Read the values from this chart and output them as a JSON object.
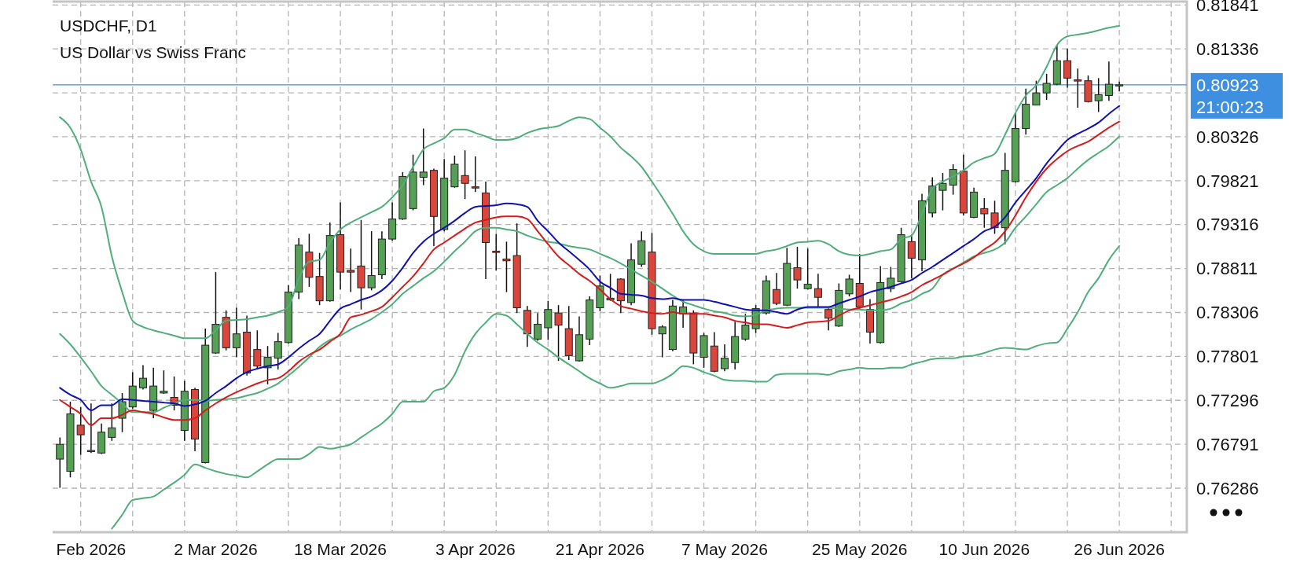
{
  "chart_data": {
    "type": "candlestick",
    "title": "USDCHF, D1",
    "subtitle": "US Dollar vs Swiss Franc",
    "categories": [
      null,
      null,
      null,
      "Feb 2026",
      null,
      null,
      null,
      null,
      null,
      null,
      null,
      null,
      null,
      null,
      null,
      "2 Mar 2026",
      null,
      null,
      null,
      null,
      null,
      null,
      null,
      null,
      null,
      null,
      null,
      "18 Mar 2026",
      null,
      null,
      null,
      null,
      null,
      null,
      null,
      null,
      null,
      null,
      null,
      null,
      "3 Apr 2026",
      null,
      null,
      null,
      null,
      null,
      null,
      null,
      null,
      null,
      null,
      null,
      "21 Apr 2026",
      null,
      null,
      null,
      null,
      null,
      null,
      null,
      null,
      null,
      null,
      null,
      "7 May 2026",
      null,
      null,
      null,
      null,
      null,
      null,
      null,
      null,
      null,
      null,
      null,
      null,
      "25 May 2026",
      null,
      null,
      null,
      null,
      null,
      null,
      null,
      null,
      null,
      null,
      null,
      "10 Jun 2026",
      null,
      null,
      null,
      null,
      null,
      null,
      null,
      null,
      null,
      null,
      null,
      null,
      "26 Jun 2026"
    ],
    "ylim": [
      0.7578,
      0.8188
    ],
    "yticks": [
      0.76286,
      0.76791,
      0.77296,
      0.77801,
      0.78306,
      0.78811,
      0.79316,
      0.79821,
      0.80326,
      {
        "value": 0.80831,
        "label": null
      },
      0.81336,
      0.81841
    ],
    "grid": true,
    "ref_lines": [
      {
        "axis": "y",
        "value": 0.80923,
        "label": "0.80923",
        "color": "#3f8fe0"
      }
    ],
    "annotations": [
      "21:00:23"
    ],
    "series": [
      {
        "colors": [
          "#55a055",
          "#55a055",
          "#d9463b",
          "#55a055",
          "#55a055",
          "#55a055",
          "#55a055",
          "#55a055",
          "#55a055",
          "#55a055",
          "#55a055",
          "#d9463b",
          "#55a055",
          "#d9463b",
          "#55a055",
          "#55a055",
          "#d9463b",
          "#55a055",
          "#d9463b",
          "#d9463b",
          "#55a055",
          "#55a055",
          "#55a055",
          "#55a055",
          "#d9463b",
          "#d9463b",
          "#55a055",
          "#d9463b",
          "#d9463b",
          "#d9463b",
          "#55a055",
          "#55a055",
          "#55a055",
          "#55a055",
          "#55a055",
          "#55a055",
          "#d9463b",
          "#55a055",
          "#55a055",
          "#d9463b",
          "#d9463b",
          "#d9463b",
          "#d9463b",
          "#d9463b",
          "#d9463b",
          "#d9463b",
          "#55a055",
          "#55a055",
          "#d9463b",
          "#d9463b",
          "#55a055",
          "#55a055",
          "#55a055",
          "#55a055",
          "#d9463b",
          "#55a055",
          "#55a055",
          "#d9463b",
          "#55a055",
          "#55a055",
          "#55a055",
          "#d9463b",
          "#55a055",
          "#d9463b",
          "#55a055",
          "#55a055",
          "#55a055",
          "#55a055",
          "#55a055",
          "#d9463b",
          "#55a055",
          "#d9463b",
          "#55a055",
          "#d9463b",
          "#d9463b",
          "#55a055",
          "#55a055",
          "#d9463b",
          "#d9463b",
          "#55a055",
          "#55a055",
          "#55a055",
          "#d9463b",
          "#55a055",
          "#55a055",
          "#55a055",
          "#55a055",
          "#d9463b",
          "#55a055",
          "#d9463b",
          "#d9463b",
          "#55a055",
          "#55a055",
          "#55a055",
          "#55a055",
          "#55a055",
          "#55a055",
          "#d9463b",
          "#d9463b",
          "#d9463b",
          "#55a055",
          "#55a055",
          "#55a055"
        ],
        "ohlc": [
          [
            0.7662,
            0.7687,
            0.7629,
            0.7679
          ],
          [
            0.7648,
            0.7728,
            0.7641,
            0.7714
          ],
          [
            0.7701,
            0.7722,
            0.7667,
            0.769
          ],
          [
            0.7671,
            0.7726,
            0.7669,
            0.7672
          ],
          [
            0.7669,
            0.7703,
            0.7668,
            0.7693
          ],
          [
            0.7687,
            0.7726,
            0.7683,
            0.7698
          ],
          [
            0.7709,
            0.7738,
            0.7693,
            0.7728
          ],
          [
            0.7722,
            0.7762,
            0.772,
            0.7746
          ],
          [
            0.7744,
            0.777,
            0.7742,
            0.7755
          ],
          [
            0.7718,
            0.7767,
            0.7709,
            0.7746
          ],
          [
            0.7738,
            0.7764,
            0.7737,
            0.774
          ],
          [
            0.7733,
            0.7757,
            0.7718,
            0.7724
          ],
          [
            0.7695,
            0.7752,
            0.7683,
            0.774
          ],
          [
            0.7742,
            0.7744,
            0.7671,
            0.7685
          ],
          [
            0.7658,
            0.7812,
            0.7657,
            0.7793
          ],
          [
            0.7784,
            0.7877,
            0.7783,
            0.7817
          ],
          [
            0.7825,
            0.7833,
            0.7787,
            0.779
          ],
          [
            0.779,
            0.7836,
            0.7779,
            0.7806
          ],
          [
            0.7808,
            0.7827,
            0.7758,
            0.7761
          ],
          [
            0.7788,
            0.781,
            0.7766,
            0.7769
          ],
          [
            0.7767,
            0.7792,
            0.7748,
            0.7779
          ],
          [
            0.7778,
            0.7807,
            0.7765,
            0.7797
          ],
          [
            0.7796,
            0.7862,
            0.7795,
            0.7854
          ],
          [
            0.7854,
            0.7916,
            0.7846,
            0.7908
          ],
          [
            0.79,
            0.7921,
            0.786,
            0.7871
          ],
          [
            0.7872,
            0.7899,
            0.7839,
            0.7844
          ],
          [
            0.7844,
            0.7934,
            0.7843,
            0.7919
          ],
          [
            0.792,
            0.7957,
            0.7857,
            0.7877
          ],
          [
            0.7879,
            0.7904,
            0.7854,
            0.7877
          ],
          [
            0.7884,
            0.7937,
            0.7834,
            0.7859
          ],
          [
            0.7859,
            0.7924,
            0.7856,
            0.7873
          ],
          [
            0.7874,
            0.7924,
            0.7869,
            0.7915
          ],
          [
            0.7915,
            0.7957,
            0.7913,
            0.7938
          ],
          [
            0.7938,
            0.7992,
            0.7937,
            0.7987
          ],
          [
            0.795,
            0.8012,
            0.7948,
            0.7992
          ],
          [
            0.7986,
            0.8042,
            0.7977,
            0.7992
          ],
          [
            0.7994,
            0.7996,
            0.7907,
            0.7941
          ],
          [
            0.7926,
            0.8007,
            0.7924,
            0.7985
          ],
          [
            0.7975,
            0.8011,
            0.7974,
            0.8001
          ],
          [
            0.7988,
            0.8017,
            0.7961,
            0.7979
          ],
          [
            0.7975,
            0.801,
            0.7969,
            0.7974
          ],
          [
            0.7968,
            0.7981,
            0.7869,
            0.7911
          ],
          [
            0.7901,
            0.7921,
            0.7879,
            0.79
          ],
          [
            0.7892,
            0.7912,
            0.7854,
            0.789
          ],
          [
            0.7896,
            0.7933,
            0.783,
            0.7836
          ],
          [
            0.7833,
            0.7838,
            0.7791,
            0.7806
          ],
          [
            0.78,
            0.783,
            0.7798,
            0.7817
          ],
          [
            0.7813,
            0.7844,
            0.7799,
            0.7834
          ],
          [
            0.783,
            0.7839,
            0.7775,
            0.7816
          ],
          [
            0.7812,
            0.7838,
            0.7776,
            0.7781
          ],
          [
            0.7775,
            0.7826,
            0.7774,
            0.7805
          ],
          [
            0.78,
            0.7849,
            0.7793,
            0.7845
          ],
          [
            0.7836,
            0.7873,
            0.7832,
            0.7861
          ],
          [
            0.7845,
            0.7875,
            0.7844,
            0.7847
          ],
          [
            0.7869,
            0.787,
            0.783,
            0.7844
          ],
          [
            0.7842,
            0.791,
            0.7839,
            0.7891
          ],
          [
            0.7886,
            0.7924,
            0.7883,
            0.7913
          ],
          [
            0.79,
            0.7922,
            0.7805,
            0.7812
          ],
          [
            0.7806,
            0.7816,
            0.7779,
            0.7814
          ],
          [
            0.7788,
            0.7845,
            0.7786,
            0.7838
          ],
          [
            0.7829,
            0.7845,
            0.7813,
            0.7837
          ],
          [
            0.783,
            0.7833,
            0.7771,
            0.7784
          ],
          [
            0.7779,
            0.7807,
            0.7767,
            0.7804
          ],
          [
            0.7792,
            0.7808,
            0.7762,
            0.7763
          ],
          [
            0.7766,
            0.7794,
            0.7763,
            0.7778
          ],
          [
            0.7773,
            0.782,
            0.7765,
            0.7803
          ],
          [
            0.78,
            0.7829,
            0.7798,
            0.7816
          ],
          [
            0.7812,
            0.7839,
            0.7807,
            0.7835
          ],
          [
            0.783,
            0.7873,
            0.7828,
            0.7867
          ],
          [
            0.7857,
            0.7876,
            0.7839,
            0.7841
          ],
          [
            0.7839,
            0.7905,
            0.7838,
            0.7887
          ],
          [
            0.7882,
            0.7906,
            0.7858,
            0.7868
          ],
          [
            0.7858,
            0.7904,
            0.7857,
            0.7863
          ],
          [
            0.7858,
            0.7875,
            0.7836,
            0.7848
          ],
          [
            0.7834,
            0.7837,
            0.781,
            0.7824
          ],
          [
            0.7815,
            0.7864,
            0.7814,
            0.7856
          ],
          [
            0.7852,
            0.7874,
            0.7849,
            0.7869
          ],
          [
            0.7864,
            0.7898,
            0.7835,
            0.7837
          ],
          [
            0.7834,
            0.7846,
            0.7795,
            0.7808
          ],
          [
            0.7796,
            0.7884,
            0.7795,
            0.7865
          ],
          [
            0.7858,
            0.7883,
            0.7854,
            0.787
          ],
          [
            0.7866,
            0.7928,
            0.7865,
            0.792
          ],
          [
            0.7912,
            0.792,
            0.787,
            0.7893
          ],
          [
            0.7891,
            0.7967,
            0.7878,
            0.7959
          ],
          [
            0.7945,
            0.7986,
            0.794,
            0.7976
          ],
          [
            0.7971,
            0.7991,
            0.7948,
            0.7979
          ],
          [
            0.7977,
            0.8001,
            0.7966,
            0.7995
          ],
          [
            0.7993,
            0.8012,
            0.7942,
            0.7945
          ],
          [
            0.794,
            0.7974,
            0.7939,
            0.7969
          ],
          [
            0.795,
            0.7962,
            0.7928,
            0.7944
          ],
          [
            0.7945,
            0.7959,
            0.7921,
            0.7928
          ],
          [
            0.7928,
            0.8014,
            0.7909,
            0.7994
          ],
          [
            0.7981,
            0.806,
            0.798,
            0.8042
          ],
          [
            0.8042,
            0.8088,
            0.8035,
            0.807
          ],
          [
            0.8069,
            0.8097,
            0.8069,
            0.8083
          ],
          [
            0.8083,
            0.8105,
            0.8075,
            0.8094
          ],
          [
            0.8093,
            0.8138,
            0.8092,
            0.812
          ],
          [
            0.812,
            0.8134,
            0.8089,
            0.81
          ],
          [
            0.8098,
            0.8111,
            0.8066,
            0.8097
          ],
          [
            0.8097,
            0.8103,
            0.8072,
            0.8073
          ],
          [
            0.8074,
            0.81,
            0.8061,
            0.8081
          ],
          [
            0.808,
            0.8119,
            0.8074,
            0.8093
          ],
          [
            0.8091,
            0.8096,
            0.8085,
            0.80923
          ]
        ]
      },
      {
        "type": "line",
        "color": "#4fae7a",
        "values": [
          0.8055,
          0.8043,
          0.8018,
          0.7981,
          0.7952,
          0.7895,
          0.7854,
          0.7821,
          0.7814,
          0.781,
          0.7807,
          0.7804,
          0.7801,
          0.7801,
          0.7801,
          0.781,
          0.7821,
          0.7822,
          0.7823,
          0.7825,
          0.7827,
          0.7831,
          0.7837,
          0.787,
          0.7889,
          0.7891,
          0.7911,
          0.7926,
          0.7934,
          0.794,
          0.7946,
          0.7952,
          0.7963,
          0.7977,
          0.7998,
          0.8018,
          0.8025,
          0.8031,
          0.8041,
          0.8041,
          0.8037,
          0.8033,
          0.8029,
          0.8029,
          0.8031,
          0.8037,
          0.8041,
          0.8043,
          0.8045,
          0.8051,
          0.8055,
          0.8053,
          0.8043,
          0.8033,
          0.802,
          0.801,
          0.7998,
          0.7981,
          0.7963,
          0.7944,
          0.7924,
          0.7909,
          0.7901,
          0.7898,
          0.7898,
          0.7898,
          0.7898,
          0.7898,
          0.7901,
          0.7903,
          0.7907,
          0.7911,
          0.7912,
          0.7913,
          0.7909,
          0.7901,
          0.7897,
          0.7896,
          0.7898,
          0.7901,
          0.7903,
          0.7915,
          0.7919,
          0.7944,
          0.7973,
          0.7981,
          0.7987,
          0.7994,
          0.8003,
          0.8008,
          0.8013,
          0.8035,
          0.806,
          0.808,
          0.8092,
          0.8113,
          0.8138,
          0.8148,
          0.815,
          0.8152,
          0.8155,
          0.8158,
          0.816
        ]
      },
      {
        "type": "line",
        "color": "#4fae7a",
        "values": [
          0.7806,
          0.7794,
          0.7779,
          0.7763,
          0.7746,
          0.7736,
          0.7726,
          0.7716,
          0.7716,
          0.7716,
          0.7721,
          0.7726,
          0.773,
          0.773,
          0.7729,
          0.773,
          0.7731,
          0.7732,
          0.7735,
          0.7738,
          0.7743,
          0.7749,
          0.7758,
          0.7768,
          0.7779,
          0.7791,
          0.7799,
          0.7804,
          0.7811,
          0.7817,
          0.7823,
          0.7831,
          0.784,
          0.7852,
          0.7861,
          0.787,
          0.7878,
          0.7889,
          0.7901,
          0.7912,
          0.7924,
          0.7928,
          0.7928,
          0.7926,
          0.7924,
          0.7919,
          0.7915,
          0.7912,
          0.791,
          0.7907,
          0.7905,
          0.7903,
          0.7898,
          0.7893,
          0.7887,
          0.788,
          0.7873,
          0.7866,
          0.7858,
          0.785,
          0.7843,
          0.7839,
          0.7835,
          0.7832,
          0.783,
          0.7827,
          0.7826,
          0.7828,
          0.7833,
          0.7835,
          0.7836,
          0.7836,
          0.7836,
          0.7836,
          0.7836,
          0.7835,
          0.7834,
          0.7834,
          0.7833,
          0.7833,
          0.7835,
          0.7841,
          0.7845,
          0.7852,
          0.7858,
          0.7874,
          0.7881,
          0.7888,
          0.7895,
          0.7899,
          0.7903,
          0.7911,
          0.7928,
          0.7941,
          0.7955,
          0.7969,
          0.7977,
          0.7985,
          0.7996,
          0.8006,
          0.8014,
          0.8022,
          0.8033
        ]
      },
      {
        "type": "line",
        "color": "#4fae7a",
        "values": [
          null,
          null,
          null,
          null,
          null,
          0.7582,
          0.7598,
          0.7615,
          0.7617,
          0.7619,
          0.7627,
          0.7635,
          0.7644,
          0.7656,
          0.7652,
          0.7648,
          0.7645,
          0.7643,
          0.7641,
          0.7648,
          0.7656,
          0.7662,
          0.7662,
          0.7662,
          0.7668,
          0.7676,
          0.7674,
          0.7676,
          0.7679,
          0.7687,
          0.7695,
          0.7703,
          0.7714,
          0.7728,
          0.7728,
          0.7728,
          0.774,
          0.7744,
          0.7759,
          0.7786,
          0.7806,
          0.7819,
          0.7829,
          0.7827,
          0.7817,
          0.7806,
          0.7796,
          0.7788,
          0.7779,
          0.7771,
          0.7763,
          0.7755,
          0.7749,
          0.7744,
          0.7746,
          0.7749,
          0.7749,
          0.7749,
          0.7753,
          0.776,
          0.7769,
          0.7767,
          0.7762,
          0.7758,
          0.7753,
          0.7752,
          0.7752,
          0.7751,
          0.7751,
          0.7759,
          0.776,
          0.776,
          0.776,
          0.776,
          0.7759,
          0.7763,
          0.7765,
          0.7767,
          0.7766,
          0.7766,
          0.7767,
          0.7767,
          0.7771,
          0.7774,
          0.7777,
          0.7778,
          0.7778,
          0.778,
          0.7781,
          0.7784,
          0.7788,
          0.779,
          0.7789,
          0.7788,
          0.7792,
          0.7795,
          0.7796,
          0.7812,
          0.7831,
          0.7854,
          0.787,
          0.7891,
          0.7907
        ]
      },
      {
        "type": "line",
        "color": "#1010b0",
        "values": [
          0.7744,
          0.7736,
          0.773,
          0.7718,
          0.7724,
          0.7724,
          0.7731,
          0.773,
          0.7729,
          0.7728,
          0.7727,
          0.7726,
          0.7723,
          0.7725,
          0.7729,
          0.7738,
          0.7746,
          0.7755,
          0.7762,
          0.7766,
          0.7769,
          0.7771,
          0.7779,
          0.7789,
          0.7798,
          0.7806,
          0.7821,
          0.7835,
          0.784,
          0.7845,
          0.7849,
          0.7856,
          0.7867,
          0.7882,
          0.7899,
          0.7912,
          0.7921,
          0.7928,
          0.7936,
          0.7945,
          0.7952,
          0.7953,
          0.7954,
          0.7956,
          0.7955,
          0.7952,
          0.7936,
          0.7924,
          0.7911,
          0.7901,
          0.7891,
          0.788,
          0.7866,
          0.7859,
          0.7852,
          0.7851,
          0.785,
          0.7847,
          0.7846,
          0.7847,
          0.7845,
          0.7845,
          0.7845,
          0.7843,
          0.784,
          0.7837,
          0.7834,
          0.7833,
          0.7833,
          0.7831,
          0.7829,
          0.7834,
          0.7837,
          0.7837,
          0.7837,
          0.7841,
          0.7845,
          0.7849,
          0.7854,
          0.7857,
          0.786,
          0.7864,
          0.7868,
          0.7876,
          0.7883,
          0.7891,
          0.7899,
          0.7907,
          0.7915,
          0.7924,
          0.7929,
          0.794,
          0.7957,
          0.7971,
          0.7985,
          0.8002,
          0.8016,
          0.8029,
          0.8036,
          0.8042,
          0.8049,
          0.8059,
          0.8068
        ]
      },
      {
        "type": "line",
        "color": "#d41c1c",
        "values": [
          0.773,
          0.7722,
          0.7714,
          0.7701,
          0.7709,
          0.7709,
          0.7713,
          0.7718,
          0.7716,
          0.7714,
          0.771,
          0.7707,
          0.7707,
          0.7709,
          0.7718,
          0.7726,
          0.7733,
          0.7739,
          0.7744,
          0.7749,
          0.7753,
          0.7755,
          0.7763,
          0.7774,
          0.7782,
          0.7788,
          0.7797,
          0.7806,
          0.7825,
          0.7828,
          0.7832,
          0.7837,
          0.7848,
          0.786,
          0.7872,
          0.7887,
          0.7903,
          0.7911,
          0.7919,
          0.7927,
          0.7934,
          0.7937,
          0.794,
          0.7941,
          0.7941,
          0.7938,
          0.7924,
          0.7909,
          0.7895,
          0.7885,
          0.7875,
          0.7867,
          0.7857,
          0.7846,
          0.7838,
          0.7835,
          0.7832,
          0.783,
          0.7829,
          0.7831,
          0.7829,
          0.7829,
          0.7829,
          0.7827,
          0.7825,
          0.7821,
          0.7819,
          0.7817,
          0.7817,
          0.7815,
          0.7813,
          0.7816,
          0.7819,
          0.782,
          0.7821,
          0.7827,
          0.7833,
          0.7836,
          0.7839,
          0.7842,
          0.7845,
          0.7849,
          0.7854,
          0.7862,
          0.7868,
          0.7874,
          0.7881,
          0.7887,
          0.7894,
          0.7903,
          0.7911,
          0.7924,
          0.7942,
          0.7963,
          0.7981,
          0.7996,
          0.8007,
          0.8016,
          0.8022,
          0.8027,
          0.8035,
          0.8043,
          0.805
        ]
      }
    ]
  }
}
